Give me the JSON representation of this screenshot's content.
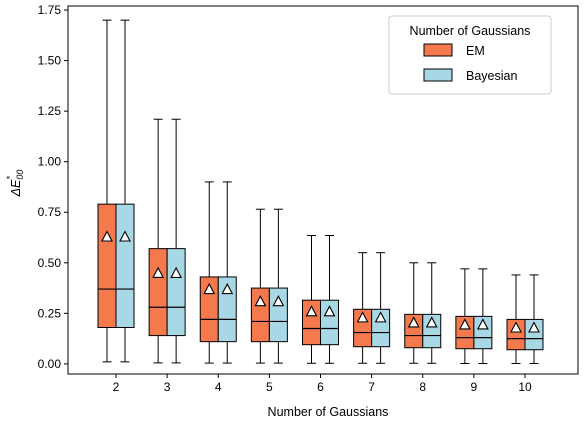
{
  "chart_data": {
    "type": "box",
    "categories": [
      "2",
      "3",
      "4",
      "5",
      "6",
      "7",
      "8",
      "9",
      "10"
    ],
    "xlabel": "Number of Gaussians",
    "ylabel_main": "ΔE",
    "ylabel_sup": "*",
    "ylabel_sub": "00",
    "ylim": [
      -0.05,
      1.77
    ],
    "yticks": [
      "0.00",
      "0.25",
      "0.50",
      "0.75",
      "1.00",
      "1.25",
      "1.50",
      "1.75"
    ],
    "legend": {
      "title": "Number of Gaussians",
      "position": "top-right"
    },
    "series": [
      {
        "name": "EM",
        "color": "#f47a4e",
        "boxes": [
          {
            "whislo": 0.01,
            "q1": 0.18,
            "med": 0.37,
            "q3": 0.79,
            "whishi": 1.7,
            "mean": 0.63
          },
          {
            "whislo": 0.005,
            "q1": 0.14,
            "med": 0.28,
            "q3": 0.57,
            "whishi": 1.21,
            "mean": 0.45
          },
          {
            "whislo": 0.004,
            "q1": 0.11,
            "med": 0.22,
            "q3": 0.43,
            "whishi": 0.9,
            "mean": 0.37
          },
          {
            "whislo": 0.004,
            "q1": 0.11,
            "med": 0.21,
            "q3": 0.375,
            "whishi": 0.765,
            "mean": 0.31
          },
          {
            "whislo": 0.003,
            "q1": 0.095,
            "med": 0.175,
            "q3": 0.315,
            "whishi": 0.635,
            "mean": 0.26
          },
          {
            "whislo": 0.003,
            "q1": 0.085,
            "med": 0.155,
            "q3": 0.27,
            "whishi": 0.55,
            "mean": 0.23
          },
          {
            "whislo": 0.003,
            "q1": 0.08,
            "med": 0.14,
            "q3": 0.245,
            "whishi": 0.5,
            "mean": 0.205
          },
          {
            "whislo": 0.002,
            "q1": 0.075,
            "med": 0.13,
            "q3": 0.235,
            "whishi": 0.47,
            "mean": 0.195
          },
          {
            "whislo": 0.002,
            "q1": 0.07,
            "med": 0.125,
            "q3": 0.22,
            "whishi": 0.44,
            "mean": 0.18
          }
        ]
      },
      {
        "name": "Bayesian",
        "color": "#a8d8e6",
        "boxes": [
          {
            "whislo": 0.01,
            "q1": 0.18,
            "med": 0.37,
            "q3": 0.79,
            "whishi": 1.7,
            "mean": 0.63
          },
          {
            "whislo": 0.005,
            "q1": 0.14,
            "med": 0.28,
            "q3": 0.57,
            "whishi": 1.21,
            "mean": 0.45
          },
          {
            "whislo": 0.004,
            "q1": 0.11,
            "med": 0.22,
            "q3": 0.43,
            "whishi": 0.9,
            "mean": 0.37
          },
          {
            "whislo": 0.004,
            "q1": 0.11,
            "med": 0.21,
            "q3": 0.375,
            "whishi": 0.765,
            "mean": 0.31
          },
          {
            "whislo": 0.003,
            "q1": 0.095,
            "med": 0.175,
            "q3": 0.315,
            "whishi": 0.635,
            "mean": 0.26
          },
          {
            "whislo": 0.003,
            "q1": 0.085,
            "med": 0.155,
            "q3": 0.27,
            "whishi": 0.55,
            "mean": 0.23
          },
          {
            "whislo": 0.003,
            "q1": 0.08,
            "med": 0.14,
            "q3": 0.245,
            "whishi": 0.5,
            "mean": 0.205
          },
          {
            "whislo": 0.002,
            "q1": 0.075,
            "med": 0.13,
            "q3": 0.235,
            "whishi": 0.47,
            "mean": 0.195
          },
          {
            "whislo": 0.002,
            "q1": 0.07,
            "med": 0.125,
            "q3": 0.22,
            "whishi": 0.44,
            "mean": 0.18
          }
        ]
      }
    ]
  }
}
